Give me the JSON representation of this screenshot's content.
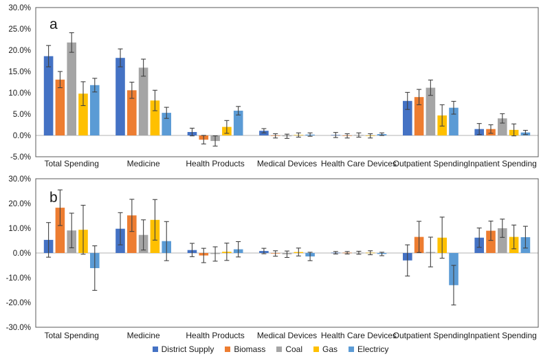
{
  "chart_data": [
    {
      "type": "bar",
      "panel_label": "a",
      "title": "",
      "xlabel": "",
      "ylabel": "",
      "categories": [
        "Total Spending",
        "Medicine",
        "Health Products",
        "Medical Devices",
        "Health Care Devices",
        "Outpatient Spending",
        "Inpatient Spending"
      ],
      "ylim": [
        -5,
        30
      ],
      "yticks": [
        30,
        25,
        20,
        15,
        10,
        5,
        0,
        -5
      ],
      "ytick_format": "0.0%",
      "grid": "zero-line-only",
      "error_bars": true,
      "legend_position": "shared-bottom",
      "series": [
        {
          "name": "District Supply",
          "color": "#4472C4",
          "values": [
            18.6,
            18.2,
            0.8,
            1.1,
            0.1,
            8.1,
            1.5
          ],
          "errors": [
            2.5,
            2.1,
            0.9,
            0.5,
            0.6,
            2.0,
            1.3
          ]
        },
        {
          "name": "Biomass",
          "color": "#ED7D31",
          "values": [
            13.1,
            10.6,
            -1.0,
            -0.1,
            -0.1,
            9.0,
            1.5
          ],
          "errors": [
            1.9,
            1.9,
            1.0,
            0.5,
            0.5,
            1.8,
            1.0
          ]
        },
        {
          "name": "Coal",
          "color": "#A5A5A5",
          "values": [
            21.8,
            15.9,
            -1.3,
            -0.2,
            0.1,
            11.2,
            4.0
          ],
          "errors": [
            2.3,
            2.0,
            1.2,
            0.5,
            0.5,
            1.8,
            1.1
          ]
        },
        {
          "name": "Gas",
          "color": "#FFC000",
          "values": [
            9.8,
            8.2,
            2.0,
            0.1,
            -0.1,
            4.7,
            1.3
          ],
          "errors": [
            2.8,
            2.4,
            1.5,
            0.5,
            0.5,
            2.5,
            1.4
          ]
        },
        {
          "name": "Electricy",
          "color": "#5B9BD5",
          "values": [
            11.8,
            5.3,
            5.8,
            0.2,
            0.3,
            6.5,
            0.7
          ],
          "errors": [
            1.6,
            1.3,
            1.0,
            0.4,
            0.3,
            1.5,
            0.5
          ]
        }
      ]
    },
    {
      "type": "bar",
      "panel_label": "b",
      "title": "",
      "xlabel": "",
      "ylabel": "",
      "categories": [
        "Total Spending",
        "Medicine",
        "Health Products",
        "Medical Devices",
        "Health Care Devices",
        "Outpatient Spending",
        "Inpatient Spending"
      ],
      "ylim": [
        -30,
        30
      ],
      "yticks": [
        30,
        20,
        10,
        0,
        -10,
        -20,
        -30
      ],
      "ytick_format": "0.0%",
      "grid": "zero-line-only",
      "error_bars": true,
      "legend_position": "shared-bottom",
      "series": [
        {
          "name": "District Supply",
          "color": "#4472C4",
          "values": [
            5.3,
            9.8,
            1.2,
            0.8,
            0.1,
            -3.0,
            6.2
          ],
          "errors": [
            7.0,
            6.5,
            2.7,
            1.1,
            0.5,
            6.3,
            3.9
          ]
        },
        {
          "name": "Biomass",
          "color": "#ED7D31",
          "values": [
            18.3,
            15.2,
            -1.0,
            -0.2,
            0.1,
            6.5,
            9.0
          ],
          "errors": [
            7.2,
            6.5,
            2.9,
            1.1,
            0.5,
            6.3,
            3.9
          ]
        },
        {
          "name": "Coal",
          "color": "#A5A5A5",
          "values": [
            9.1,
            7.3,
            -0.4,
            -0.5,
            0.1,
            0.4,
            10.0
          ],
          "errors": [
            7.0,
            6.1,
            2.9,
            1.3,
            0.6,
            6.0,
            3.7
          ]
        },
        {
          "name": "Gas",
          "color": "#FFC000",
          "values": [
            9.4,
            13.4,
            0.5,
            0.4,
            0.1,
            6.2,
            6.5
          ],
          "errors": [
            9.9,
            8.2,
            3.5,
            1.6,
            0.8,
            8.3,
            4.8
          ]
        },
        {
          "name": "Electricy",
          "color": "#5B9BD5",
          "values": [
            -6.1,
            4.8,
            1.5,
            -1.4,
            -0.4,
            -13.0,
            6.4
          ],
          "errors": [
            9.0,
            7.9,
            3.1,
            1.7,
            0.7,
            8.0,
            4.4
          ]
        }
      ]
    }
  ],
  "legend": {
    "items": [
      {
        "label": "District Supply",
        "color": "#4472C4"
      },
      {
        "label": "Biomass",
        "color": "#ED7D31"
      },
      {
        "label": "Coal",
        "color": "#A5A5A5"
      },
      {
        "label": "Gas",
        "color": "#FFC000"
      },
      {
        "label": "Electricy",
        "color": "#5B9BD5"
      }
    ]
  }
}
